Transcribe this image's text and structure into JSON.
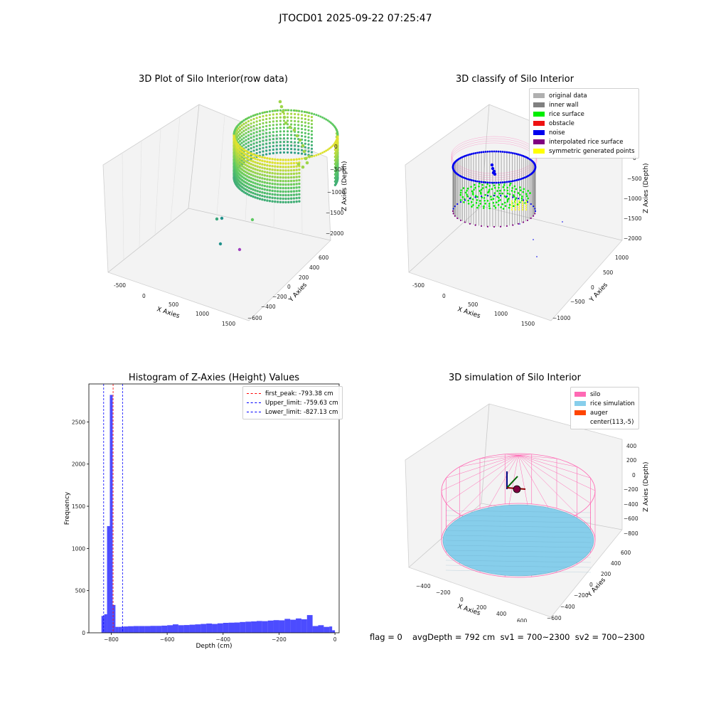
{
  "suptitle": "JTOCD01 2025-09-22 07:25:47",
  "panel1": {
    "title": "3D Plot of Silo Interior(row data)",
    "xlabel": "X Axies",
    "ylabel": "Y Axies",
    "zlabel": "Z Axies (Depth)",
    "xticks": [
      "-500",
      "0",
      "500",
      "1000",
      "1500"
    ],
    "yticks": [
      "600",
      "400",
      "200",
      "0",
      "−200",
      "−400",
      "−600"
    ],
    "zticks": [
      "0",
      "−500",
      "−1000",
      "−1500",
      "−2000"
    ]
  },
  "panel2": {
    "title": "3D classify of Silo Interior",
    "xlabel": "X Axies",
    "ylabel": "Y Axies",
    "zlabel": "Z Axies (Depth)",
    "xticks": [
      "-500",
      "0",
      "500",
      "1000",
      "1500"
    ],
    "yticks": [
      "1000",
      "500",
      "0",
      "−500",
      "−1000"
    ],
    "zticks": [
      "0",
      "−500",
      "−1000",
      "−1500",
      "−2000"
    ],
    "legend": [
      {
        "label": "original data",
        "color": "#b0b0b0"
      },
      {
        "label": "inner wall",
        "color": "#808080"
      },
      {
        "label": "rice surface",
        "color": "#00ee00"
      },
      {
        "label": "obstacle",
        "color": "#ee1111"
      },
      {
        "label": "noise",
        "color": "#0000ee"
      },
      {
        "label": "interpolated rice surface",
        "color": "#800080"
      },
      {
        "label": "symmetric generated points",
        "color": "#ffff00"
      }
    ]
  },
  "panel4": {
    "title": "3D simulation of Silo Interior",
    "xlabel": "X Axies",
    "ylabel": "Y Axies",
    "zlabel": "Z Axies (Depth)",
    "xticks": [
      "−400",
      "−200",
      "0",
      "200",
      "400",
      "600"
    ],
    "yticks": [
      "600",
      "400",
      "200",
      "0",
      "−200",
      "−400",
      "−600"
    ],
    "zticks": [
      "400",
      "200",
      "0",
      "−200",
      "−400",
      "−600",
      "−800"
    ],
    "legend": [
      {
        "label": "silo",
        "color": "#ff69b4"
      },
      {
        "label": "rice simulation",
        "color": "#87ceeb"
      },
      {
        "label": "auger",
        "color": "#ff4500"
      },
      {
        "label": "center(113,-5)",
        "color": ""
      }
    ]
  },
  "footer": {
    "flag": "flag = 0",
    "stats": "avgDepth = 792 cm  sv1 = 700~2300  sv2 = 700~2300"
  },
  "chart_data": [
    {
      "type": "scatter",
      "title": "3D Plot of Silo Interior(row data)",
      "xlabel": "X Axies",
      "ylabel": "Y Axies",
      "zlabel": "Z Axies (Depth)",
      "xlim": [
        -600,
        1600
      ],
      "ylim": [
        -650,
        650
      ],
      "zlim": [
        -2100,
        100
      ]
    },
    {
      "type": "scatter",
      "title": "3D classify of Silo Interior",
      "xlabel": "X Axies",
      "ylabel": "Y Axies",
      "zlabel": "Z Axies (Depth)",
      "xlim": [
        -600,
        1600
      ],
      "ylim": [
        -1100,
        1100
      ],
      "zlim": [
        -2100,
        100
      ],
      "legend": [
        "original data",
        "inner wall",
        "rice surface",
        "obstacle",
        "noise",
        "interpolated rice surface",
        "symmetric generated points"
      ]
    },
    {
      "type": "bar",
      "title": "Histogram of Z-Axies (Height) Values",
      "xlabel": "Depth (cm)",
      "ylabel": "Frequency",
      "xlim": [
        -880,
        15
      ],
      "ylim": [
        0,
        2950
      ],
      "xticks": [
        -800,
        -600,
        -400,
        -200,
        0
      ],
      "yticks": [
        0,
        500,
        1000,
        1500,
        2000,
        2500
      ],
      "bin_edges": [
        -835,
        -825,
        -815,
        -805,
        -795,
        -785,
        -775,
        -765,
        -755,
        -740,
        -720,
        -700,
        -680,
        -660,
        -640,
        -620,
        -600,
        -580,
        -560,
        -540,
        -520,
        -500,
        -480,
        -460,
        -440,
        -420,
        -400,
        -380,
        -360,
        -340,
        -320,
        -300,
        -280,
        -260,
        -240,
        -220,
        -200,
        -180,
        -160,
        -140,
        -120,
        -100,
        -80,
        -60,
        -40,
        -20,
        -10,
        0
      ],
      "values": [
        200,
        220,
        1265,
        2820,
        330,
        70,
        70,
        72,
        75,
        78,
        80,
        80,
        80,
        82,
        82,
        85,
        90,
        100,
        90,
        92,
        96,
        100,
        105,
        110,
        105,
        112,
        118,
        120,
        122,
        128,
        132,
        135,
        140,
        138,
        145,
        150,
        148,
        165,
        155,
        170,
        160,
        210,
        80,
        90,
        70,
        75,
        30
      ],
      "color": "#0000ff",
      "vlines": [
        {
          "label": "first_peak: -793.38 cm",
          "x": -793.38,
          "color": "#ff0000"
        },
        {
          "label": "Upper_limit: -759.63 cm",
          "x": -759.63,
          "color": "#0000ff"
        },
        {
          "label": "Lower_limit: -827.13 cm",
          "x": -827.13,
          "color": "#0000ff"
        }
      ]
    },
    {
      "type": "scatter",
      "title": "3D simulation of Silo Interior",
      "xlabel": "X Axies",
      "ylabel": "Y Axies",
      "zlabel": "Z Axies (Depth)",
      "xlim": [
        -500,
        700
      ],
      "ylim": [
        -650,
        650
      ],
      "zlim": [
        -900,
        450
      ],
      "legend": [
        "silo",
        "rice simulation",
        "auger",
        "center(113,-5)"
      ]
    }
  ]
}
